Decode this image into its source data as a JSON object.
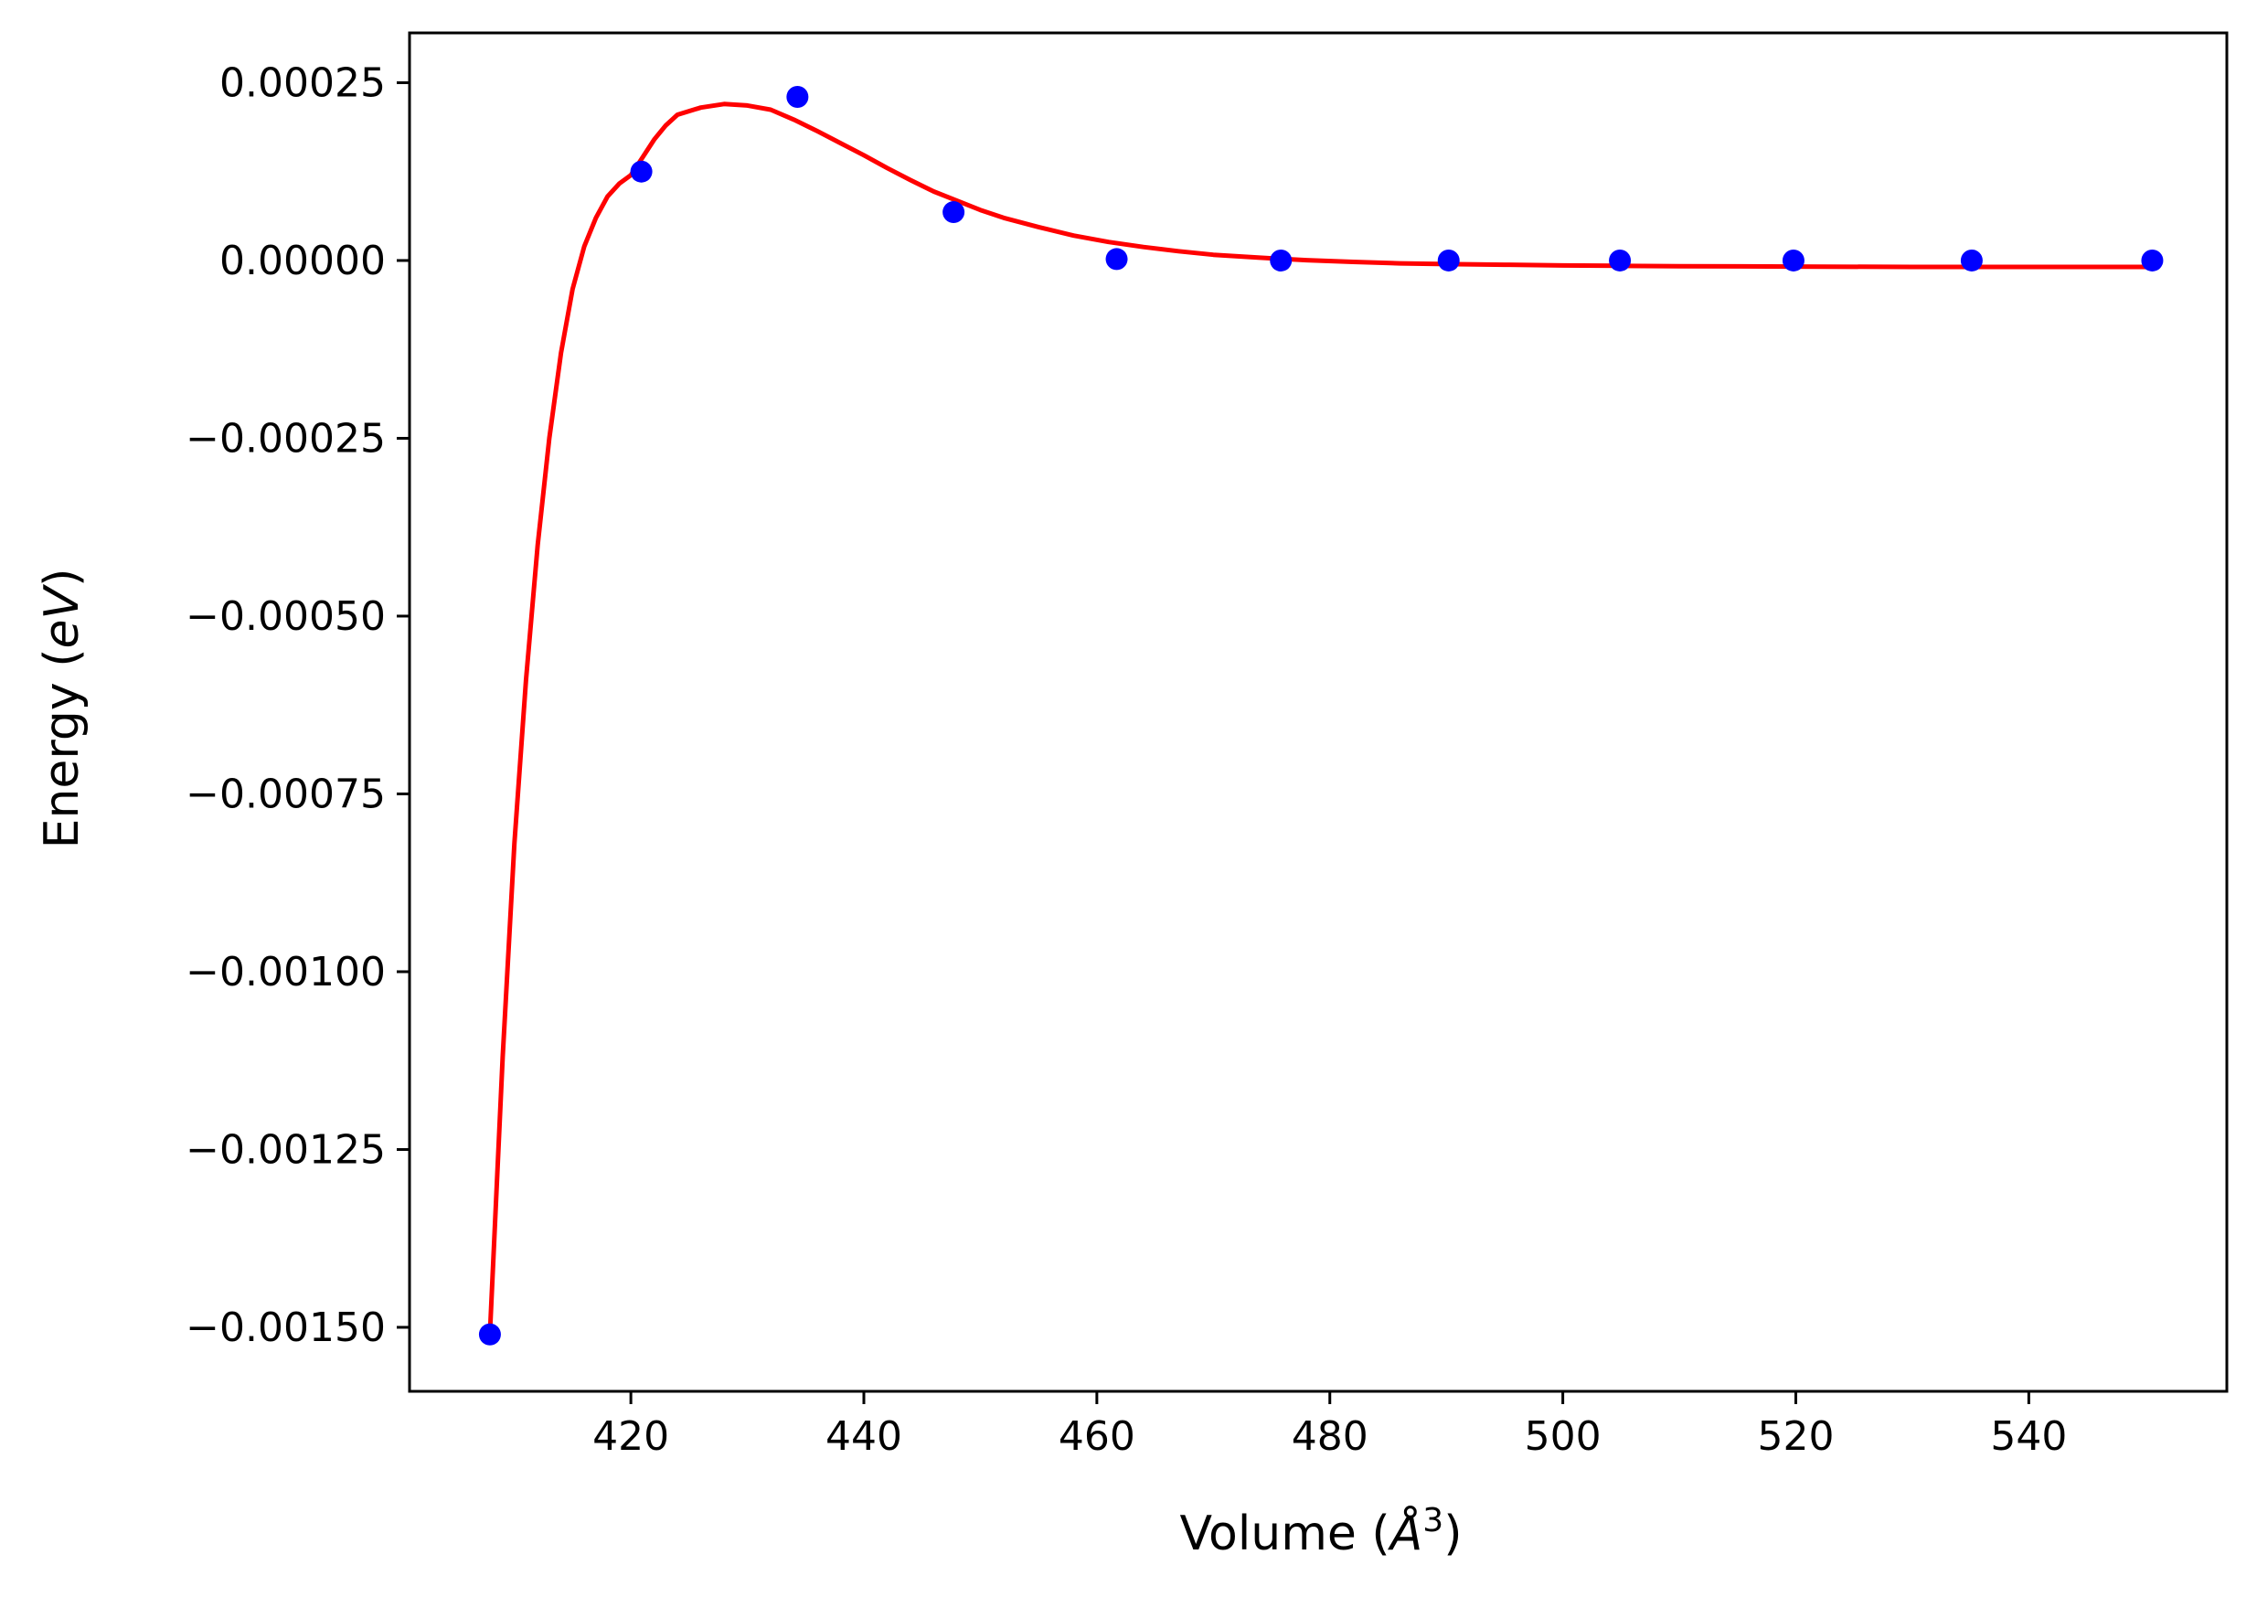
{
  "chart_data": {
    "type": "scatter",
    "title": "",
    "xlabel": {
      "prefix": "Volume (",
      "symbol": "Å",
      "exponent": "3",
      "suffix": ")"
    },
    "ylabel": {
      "prefix": "Energy (",
      "unit": "eV",
      "suffix": ")"
    },
    "xlim": [
      401,
      557
    ],
    "ylim": [
      -0.00159,
      0.00032
    ],
    "xticks": [
      420,
      440,
      460,
      480,
      500,
      520,
      540
    ],
    "yticks": [
      0.00025,
      0.0,
      -0.00025,
      -0.0005,
      -0.00075,
      -0.001,
      -0.00125,
      -0.0015
    ],
    "xtick_labels": [
      "420",
      "440",
      "460",
      "480",
      "500",
      "520",
      "540"
    ],
    "ytick_labels": [
      "0.00025",
      "0.00000",
      "−0.00025",
      "−0.00050",
      "−0.00075",
      "−0.00100",
      "−0.00125",
      "−0.00150"
    ],
    "grid": false,
    "series": [
      {
        "kind": "points",
        "color": "#0000ff",
        "x": [
          407.9,
          420.9,
          434.3,
          447.7,
          461.7,
          475.8,
          490.2,
          504.9,
          519.8,
          535.1,
          550.6
        ],
        "y": [
          -0.00151,
          0.000125,
          0.00023,
          6.8e-05,
          2e-06,
          0.0,
          0.0,
          0.0,
          0.0,
          0.0,
          0.0
        ]
      },
      {
        "kind": "fit_curve",
        "color": "#ff0000",
        "x": [
          407.9,
          409,
          410,
          411,
          412,
          413,
          414,
          415,
          416,
          417,
          418,
          419,
          420,
          421,
          422,
          423,
          424,
          426,
          428,
          430,
          432,
          434,
          436,
          438,
          440,
          442,
          444,
          446,
          448,
          450,
          452,
          455,
          458,
          461,
          464,
          467,
          470,
          474,
          478,
          482,
          486,
          490,
          495,
          500,
          505,
          510,
          520,
          530,
          540,
          550.6
        ],
        "y": [
          -0.00151,
          -0.00112,
          -0.00082,
          -0.00059,
          -0.0004,
          -0.00025,
          -0.00013,
          -4e-05,
          2e-05,
          6e-05,
          9e-05,
          0.000108,
          0.00012,
          0.000145,
          0.00017,
          0.00019,
          0.000205,
          0.000215,
          0.00022,
          0.000218,
          0.000212,
          0.000198,
          0.000182,
          0.000165,
          0.000148,
          0.00013,
          0.000113,
          9.7e-05,
          8.4e-05,
          7.1e-05,
          6e-05,
          4.7e-05,
          3.5e-05,
          2.6e-05,
          1.9e-05,
          1.3e-05,
          8e-06,
          4e-06,
          5e-07,
          -2e-06,
          -4e-06,
          -5e-06,
          -6e-06,
          -7e-06,
          -7.5e-06,
          -8e-06,
          -8.5e-06,
          -9e-06,
          -9e-06,
          -9e-06
        ]
      }
    ]
  }
}
